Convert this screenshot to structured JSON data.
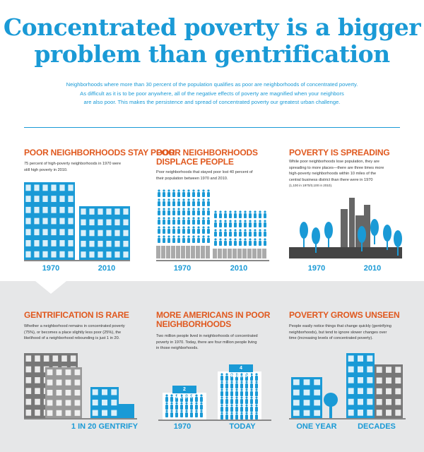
{
  "title": {
    "line1": "Concentrated poverty is a bigger",
    "line2": "problem than gentrification"
  },
  "intro": {
    "line1": "Neighborhoods where more than 30 percent of the population qualifies as poor are neighborhoods of concentrated poverty.",
    "line2": "As difficult as it is to be poor anywhere, all of the negative effects of poverty are magnified when your neighbors",
    "line3": "are also poor. This makes the persistence and spread of concentrated poverty our greatest urban challenge."
  },
  "panels": {
    "stay_poor": {
      "heading": "POOR NEIGHBORHOODS STAY POOR",
      "text1": "75 percent of high-poverty neighborhoods in 1970 were",
      "text2": "still high poverty in 2010.",
      "label_left": "1970",
      "label_right": "2010"
    },
    "displace": {
      "heading1": "POOR NEIGHBORHOODS",
      "heading2": "DISPLACE PEOPLE",
      "text1": "Poor neighborhoods that stayed poor lost 40 percent of",
      "text2": "their population between 1970 and 2010.",
      "label_left": "1970",
      "label_right": "2010"
    },
    "spreading": {
      "heading": "POVERTY IS SPREADING",
      "text1": "While poor neighborhoods lose population, they are",
      "text2": "spreading to more places—there are three times more",
      "text3": "high-poverty neighborhoods within 10 miles of the",
      "text4": "central business district than there were in 1970",
      "text5": "(1,100 in 1970/3,100 in 2010).",
      "label_left": "1970",
      "label_right": "2010"
    },
    "gentrification": {
      "heading": "GENTRIFICATION IS RARE",
      "text1": "Whether a neighborhood remains in concentrated poverty",
      "text2": "(75%), or becomes a place slightly less poor (25%), the",
      "text3": "likelihood of a neighborhood rebounding is just 1 in 20.",
      "label": "1 IN 20 GENTRIFY"
    },
    "americans": {
      "heading1": "MORE AMERICANS IN POOR",
      "heading2": "NEIGHBORHOODS",
      "text1": "Two million people lived in neighborhoods of concentrated",
      "text2": "poverty in 1970. Today, there are four million people living",
      "text3": "in those neighborhoods.",
      "badge_left": "2 MILLION",
      "badge_right": "4 MILLION",
      "label_left": "1970",
      "label_right": "TODAY"
    },
    "unseen": {
      "heading": "POVERTY GROWS UNSEEN",
      "text1": "People easily notice things that change quickly (gentrifying",
      "text2": "neighborhoods), but tend to ignore slower changes over",
      "text3": "time (increasing levels of concentrated poverty).",
      "label_left": "ONE YEAR",
      "label_right": "DECADES"
    }
  },
  "colors": {
    "blue": "#1a9ad6",
    "orange": "#e0591f",
    "dark": "#333333",
    "gray_band": "#e6e7e8"
  }
}
